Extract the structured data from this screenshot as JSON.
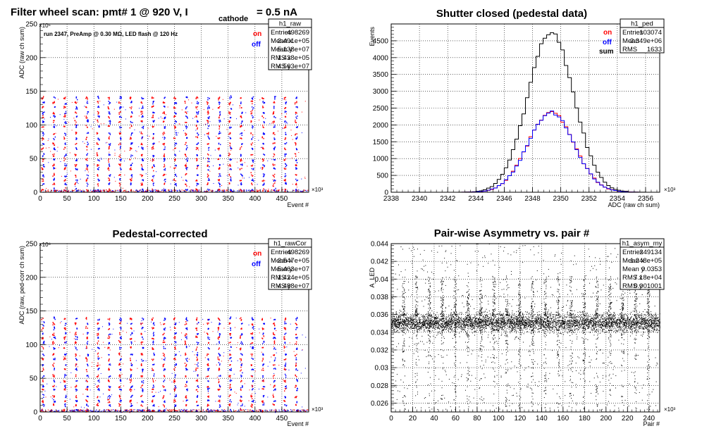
{
  "colors": {
    "on": "#ff0000",
    "off": "#0000ff",
    "sum": "#000000",
    "grid": "#000000"
  },
  "chart_data": [
    {
      "id": "raw",
      "type": "scatter",
      "title_main": "Filter wheel scan: pmt#   1 @   920 V, I",
      "title_sub": "cathode",
      "title_tail": " = 0.5 nA",
      "xlabel": "Event #",
      "ylabel": "ADC (raw ch sum)",
      "x_exponent": "×10³",
      "y_exponent": "×10⁶",
      "xlim": [
        0,
        500
      ],
      "ylim": [
        0,
        250
      ],
      "xticks": [
        0,
        50,
        100,
        150,
        200,
        250,
        300,
        350,
        400,
        450
      ],
      "yticks": [
        0,
        50,
        100,
        150,
        200,
        250
      ],
      "grid": true,
      "annotation": "run 2347, PreAmp @ 0.30 MΩ, LED flash @  120 Hz",
      "legend": [
        "on",
        "off"
      ],
      "levels": [
        3,
        12,
        18,
        25,
        35,
        40,
        48,
        55,
        65,
        72,
        80,
        87,
        97,
        105,
        112,
        118,
        126,
        133,
        140
      ],
      "stats": {
        "name": "h1_raw",
        "rows": [
          {
            "label": "Entries",
            "value": "498269"
          },
          {
            "label": "Mean x",
            "value": "2.491e+05"
          },
          {
            "label": "Mean y",
            "value": "5.138e+07"
          },
          {
            "label": "RMS x",
            "value": "1.438e+05"
          },
          {
            "label": "RMS y",
            "value": "4.563e+07"
          }
        ]
      }
    },
    {
      "id": "ped",
      "type": "line",
      "title": "Shutter closed (pedestal data)",
      "xlabel": "ADC (raw ch sum)",
      "ylabel": "Events",
      "x_exponent": "×10³",
      "xlim": [
        2338,
        2357
      ],
      "ylim": [
        0,
        5000
      ],
      "xticks": [
        2338,
        2340,
        2342,
        2344,
        2346,
        2348,
        2350,
        2352,
        2354,
        2356
      ],
      "yticks": [
        0,
        500,
        1000,
        1500,
        2000,
        2500,
        3000,
        3500,
        4000,
        4500
      ],
      "grid": true,
      "legend": [
        "on",
        "off",
        "sum"
      ],
      "gauss": {
        "mean": 2349.3,
        "sigma": 1.63,
        "peak_sum": 4750,
        "peak_on": 2380,
        "peak_off": 2370
      },
      "stats": {
        "name": "h1_ped",
        "rows": [
          {
            "label": "Entries",
            "value": "103074"
          },
          {
            "label": "Mean",
            "value": "2.349e+06"
          },
          {
            "label": "RMS",
            "value": "1633"
          }
        ]
      }
    },
    {
      "id": "rawCor",
      "type": "scatter",
      "title": "Pedestal-corrected",
      "xlabel": "Event #",
      "ylabel": "ADC (raw, ped-corr ch sum)",
      "x_exponent": "×10³",
      "y_exponent": "×10⁶",
      "xlim": [
        0,
        500
      ],
      "ylim": [
        0,
        250
      ],
      "xticks": [
        0,
        50,
        100,
        150,
        200,
        250,
        300,
        350,
        400,
        450
      ],
      "yticks": [
        0,
        50,
        100,
        150,
        200,
        250
      ],
      "grid": true,
      "legend": [
        "on",
        "off"
      ],
      "levels": [
        2,
        10,
        16,
        23,
        33,
        38,
        46,
        53,
        63,
        70,
        78,
        85,
        95,
        103,
        110,
        116,
        124,
        131,
        138
      ],
      "stats": {
        "name": "h1_rawCor",
        "rows": [
          {
            "label": "Entries",
            "value": "498269"
          },
          {
            "label": "Mean x",
            "value": "2.547e+05"
          },
          {
            "label": "Mean y",
            "value": "5.463e+07"
          },
          {
            "label": "RMS x",
            "value": "1.424e+05"
          },
          {
            "label": "RMS y",
            "value": "4.488e+07"
          }
        ]
      }
    },
    {
      "id": "asym",
      "type": "scatter",
      "title": "Pair-wise Asymmetry vs. pair #",
      "xlabel": "Pair #",
      "ylabel": "A_LED",
      "x_exponent": "×10³",
      "xlim": [
        0,
        250
      ],
      "ylim": [
        0.025,
        0.044
      ],
      "xticks": [
        0,
        20,
        40,
        60,
        80,
        100,
        120,
        140,
        160,
        180,
        200,
        220,
        240
      ],
      "yticks": [
        0.026,
        0.028,
        0.03,
        0.032,
        0.034,
        0.036,
        0.038,
        0.04,
        0.042,
        0.044
      ],
      "ytick_labels": [
        "0.026",
        "0.028",
        "0.03",
        "0.032",
        "0.034",
        "0.036",
        "0.038",
        "0.04",
        "0.042",
        "0.044"
      ],
      "grid": true,
      "band_center": 0.0351,
      "band_halfwidth": 0.0008,
      "spike_period": 12,
      "stats": {
        "name": "h1_asym_my",
        "rows": [
          {
            "label": "Entries",
            "value": "249134"
          },
          {
            "label": "Mean x",
            "value": "1.248e+05"
          },
          {
            "label": "Mean y",
            "value": "0.0353"
          },
          {
            "label": "RMS x",
            "value": "7.18e+04"
          },
          {
            "label": "RMS y",
            "value": "0.001001"
          }
        ]
      }
    }
  ]
}
